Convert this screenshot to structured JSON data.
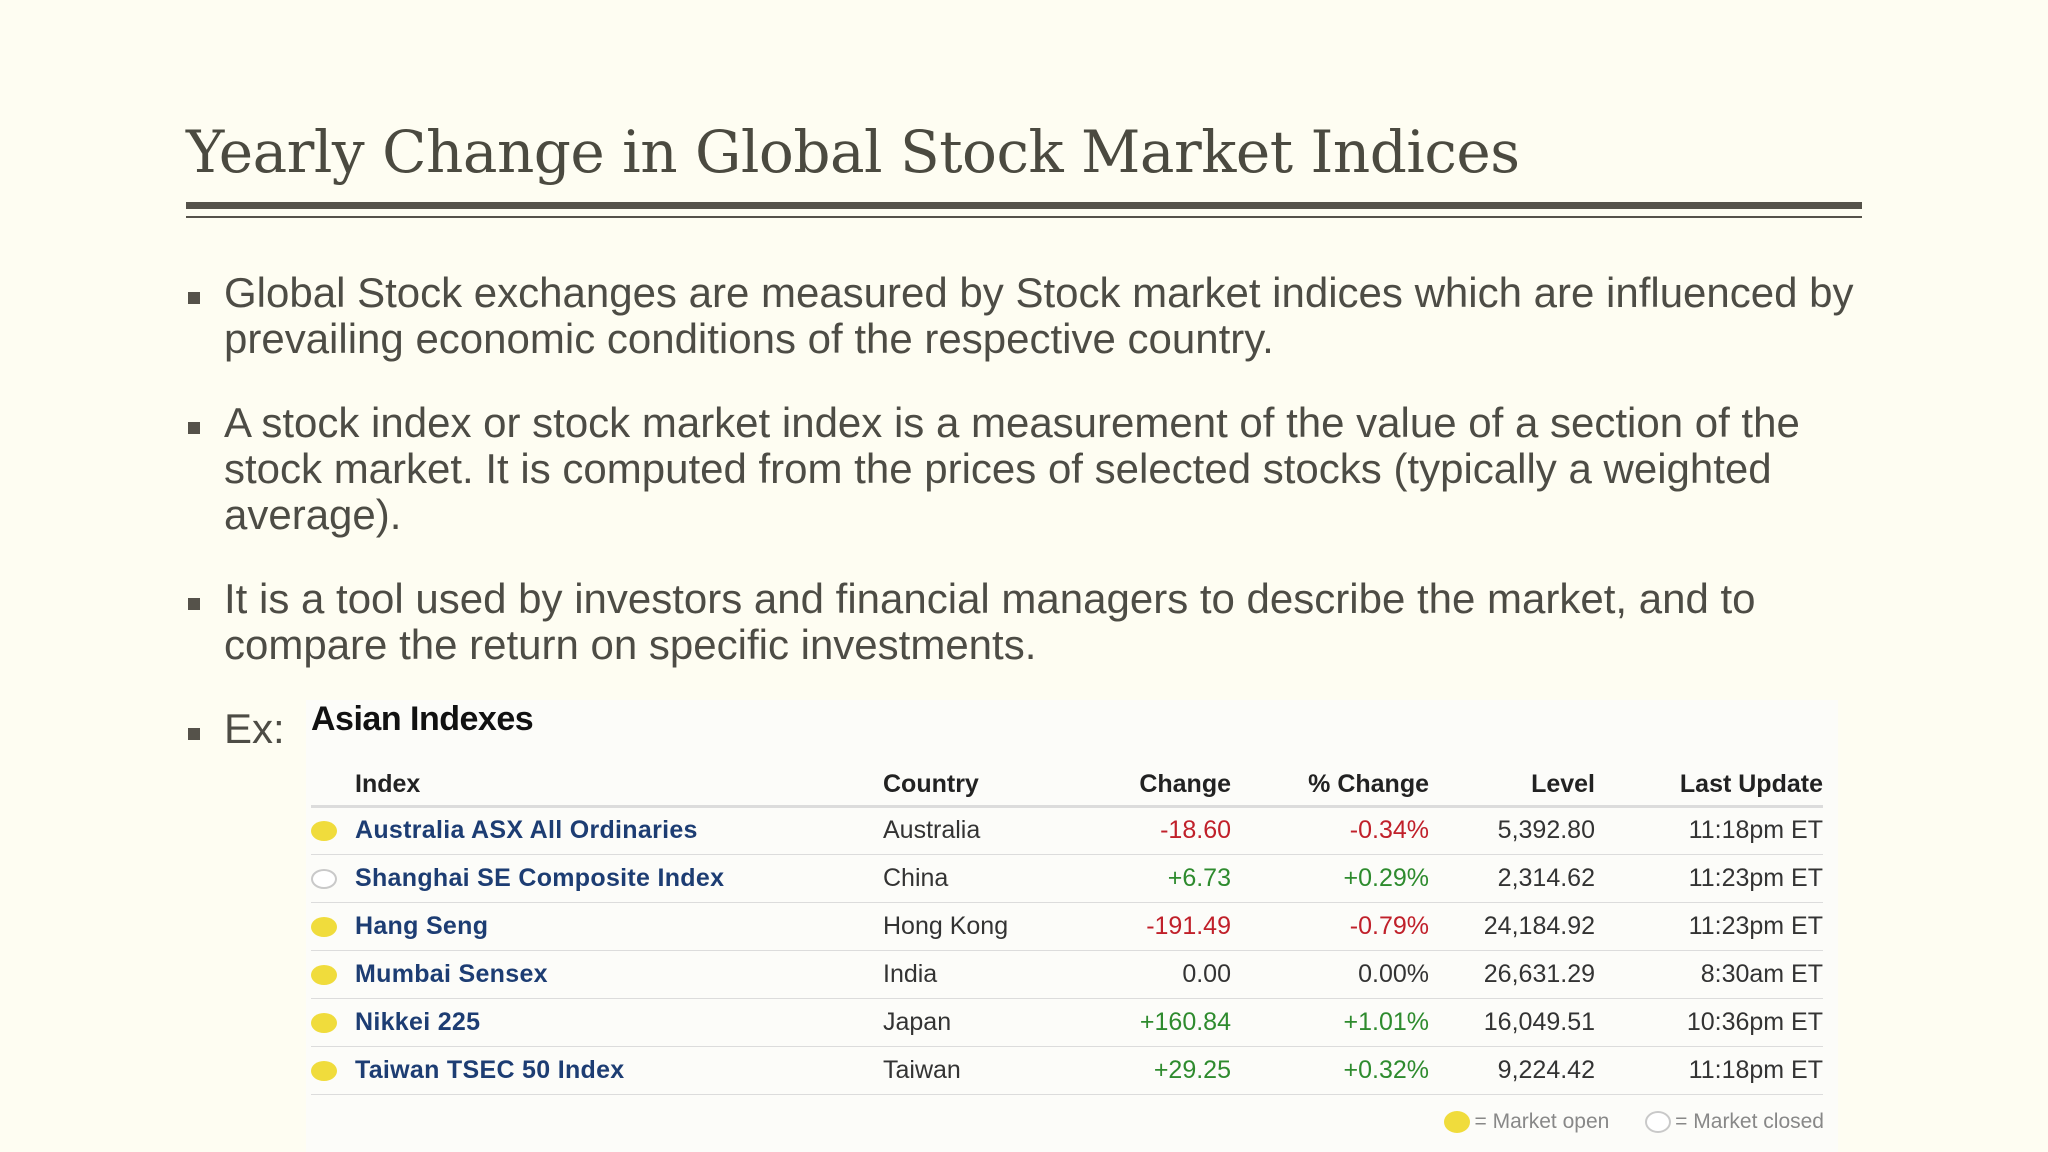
{
  "slide": {
    "title": "Yearly Change in Global Stock Market Indices",
    "bullets": [
      "Global Stock exchanges are measured by Stock market indices which are influenced by prevailing economic conditions of the respective country.",
      "A stock index or stock market index is a measurement of the value of a section of the stock market.  It is computed from the prices of selected stocks (typically a weighted average).",
      "It is a tool used by investors and financial managers to describe the market, and to compare the return on specific investments.",
      "Ex:"
    ]
  },
  "table": {
    "title": "Asian Indexes",
    "headers": {
      "index": "Index",
      "country": "Country",
      "change": "Change",
      "pct_change": "% Change",
      "level": "Level",
      "last_update": "Last Update"
    },
    "rows": [
      {
        "status": "open",
        "index": "Australia ASX All Ordinaries",
        "country": "Australia",
        "change": "-18.60",
        "pct_change": "-0.34%",
        "level": "5,392.80",
        "last_update": "11:18pm ET",
        "trend": "neg"
      },
      {
        "status": "closed",
        "index": "Shanghai SE Composite Index",
        "country": "China",
        "change": "+6.73",
        "pct_change": "+0.29%",
        "level": "2,314.62",
        "last_update": "11:23pm ET",
        "trend": "pos"
      },
      {
        "status": "open",
        "index": "Hang Seng",
        "country": "Hong Kong",
        "change": "-191.49",
        "pct_change": "-0.79%",
        "level": "24,184.92",
        "last_update": "11:23pm ET",
        "trend": "neg"
      },
      {
        "status": "open",
        "index": "Mumbai Sensex",
        "country": "India",
        "change": "0.00",
        "pct_change": "0.00%",
        "level": "26,631.29",
        "last_update": "8:30am ET",
        "trend": "flat"
      },
      {
        "status": "open",
        "index": "Nikkei 225",
        "country": "Japan",
        "change": "+160.84",
        "pct_change": "+1.01%",
        "level": "16,049.51",
        "last_update": "10:36pm ET",
        "trend": "pos"
      },
      {
        "status": "open",
        "index": "Taiwan TSEC 50 Index",
        "country": "Taiwan",
        "change": "+29.25",
        "pct_change": "+0.32%",
        "level": "9,224.42",
        "last_update": "11:18pm ET",
        "trend": "pos"
      }
    ],
    "legend": {
      "open": "= Market open",
      "closed": "= Market closed"
    }
  },
  "colors": {
    "background": "#fefdf2",
    "negative": "#c0202a",
    "positive": "#2e8b2e",
    "index_link": "#1d3d73",
    "market_open": "#f0dc3c"
  }
}
